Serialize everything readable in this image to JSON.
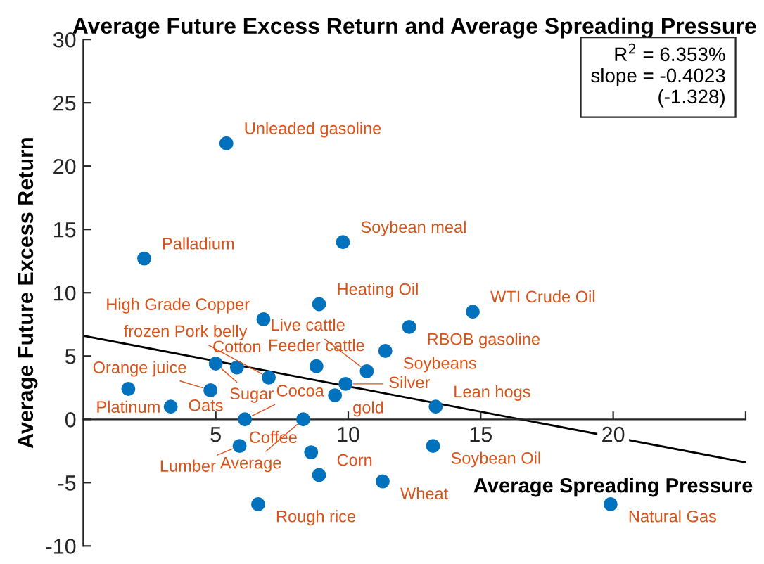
{
  "chart_data": {
    "type": "scatter",
    "title": "Average Future Excess Return and Average Spreading Pressure",
    "xlabel": "Average Spreading Pressure",
    "ylabel": "Average Future Excess Return",
    "xlim": [
      0,
      25
    ],
    "ylim": [
      -10,
      30
    ],
    "xticks": [
      5,
      10,
      15,
      20,
      {
        "value": 25,
        "label": null
      }
    ],
    "yticks": [
      -10,
      -5,
      0,
      5,
      10,
      15,
      20,
      25,
      30
    ],
    "grid": false,
    "legend": false,
    "series": [
      {
        "marker": "circle",
        "color": "#0072bd",
        "x": [
          5.4,
          2.3,
          9.8,
          8.9,
          6.8,
          14.7,
          12.3,
          11.4,
          8.8,
          10.7,
          7.0,
          9.9,
          9.5,
          4.8,
          3.3,
          1.7,
          5.0,
          5.8,
          6.1,
          8.3,
          13.3,
          5.9,
          8.6,
          13.2,
          8.9,
          11.3,
          6.6,
          19.9
        ],
        "values": [
          21.8,
          12.7,
          14.0,
          9.1,
          7.9,
          8.5,
          7.3,
          5.4,
          4.2,
          3.8,
          3.3,
          2.8,
          1.9,
          2.3,
          1.0,
          2.4,
          4.4,
          4.1,
          0.0,
          0.0,
          1.0,
          -2.1,
          -2.6,
          -2.1,
          -4.4,
          -4.9,
          -6.7,
          -6.7
        ]
      },
      {
        "type": "line",
        "color": "#000000",
        "x": [
          0,
          25
        ],
        "values": [
          6.6,
          -3.4
        ]
      }
    ],
    "annotations": [
      {
        "text": "Unleaded gasoline",
        "x": 5.4,
        "y": 21.8
      },
      {
        "text": "Palladium",
        "x": 2.3,
        "y": 12.7
      },
      {
        "text": "Soybean meal",
        "x": 9.8,
        "y": 14.0
      },
      {
        "text": "Heating Oil",
        "x": 8.9,
        "y": 9.1
      },
      {
        "text": "High Grade Copper",
        "x": 6.8,
        "y": 7.9
      },
      {
        "text": "WTI Crude Oil",
        "x": 14.7,
        "y": 8.5
      },
      {
        "text": "RBOB gasoline",
        "x": 12.3,
        "y": 7.3
      },
      {
        "text": "Soybeans",
        "x": 11.4,
        "y": 5.4
      },
      {
        "text": "Feeder cattle",
        "x": 8.8,
        "y": 4.2
      },
      {
        "text": "Live cattle",
        "x": 10.7,
        "y": 3.8
      },
      {
        "text": "frozen Pork belly",
        "x": 7.0,
        "y": 3.3
      },
      {
        "text": "Silver",
        "x": 9.9,
        "y": 2.8
      },
      {
        "text": "gold",
        "x": 9.5,
        "y": 1.9
      },
      {
        "text": "Orange juice",
        "x": 4.8,
        "y": 2.3
      },
      {
        "text": "Oats",
        "x": 3.3,
        "y": 1.0
      },
      {
        "text": "Platinum",
        "x": 1.7,
        "y": 2.4
      },
      {
        "text": "Sugar",
        "x": 5.0,
        "y": 4.4
      },
      {
        "text": "Cotton",
        "x": 5.8,
        "y": 4.1
      },
      {
        "text": "Cocoa",
        "x": 6.1,
        "y": 0.0
      },
      {
        "text": "Average",
        "x": 8.3,
        "y": 0.0
      },
      {
        "text": "Lean hogs",
        "x": 13.3,
        "y": 1.0
      },
      {
        "text": "Lumber",
        "x": 5.9,
        "y": -2.1
      },
      {
        "text": "Coffee",
        "x": 8.6,
        "y": -2.6
      },
      {
        "text": "Soybean Oil",
        "x": 13.2,
        "y": -2.1
      },
      {
        "text": "Corn",
        "x": 8.9,
        "y": -4.4
      },
      {
        "text": "Wheat",
        "x": 11.3,
        "y": -4.9
      },
      {
        "text": "Rough rice",
        "x": 6.6,
        "y": -6.7
      },
      {
        "text": "Natural Gas",
        "x": 19.9,
        "y": -6.7
      },
      "R$^{2}$ = 6.353%\nslope = -0.4023\n         (-1.328)"
    ]
  }
}
